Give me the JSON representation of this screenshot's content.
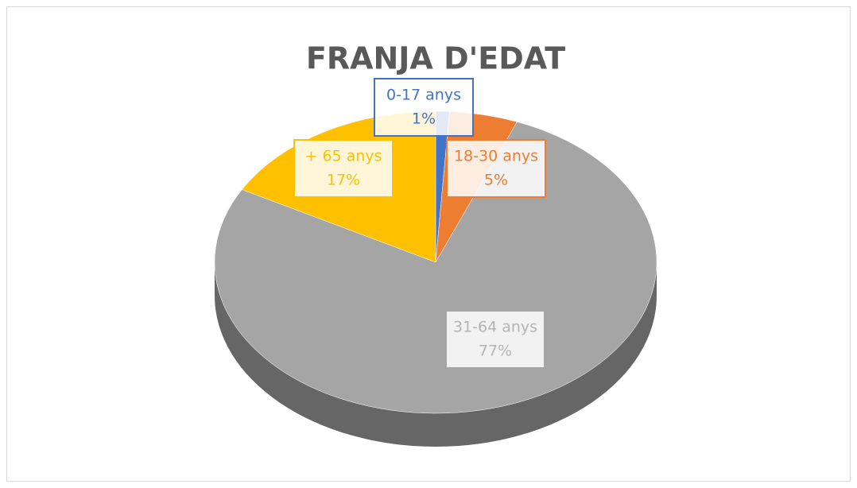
{
  "chart_data": {
    "type": "pie",
    "title": "FRANJA D'EDAT",
    "categories": [
      "0-17 anys",
      "18-30 anys",
      "31-64 anys",
      "+ 65 anys"
    ],
    "values": [
      1,
      5,
      77,
      17
    ],
    "value_labels": [
      "1%",
      "5%",
      "77%",
      "17%"
    ],
    "colors": [
      "#4472c4",
      "#ed7d31",
      "#a5a5a5",
      "#ffc000"
    ],
    "three_d": true
  }
}
